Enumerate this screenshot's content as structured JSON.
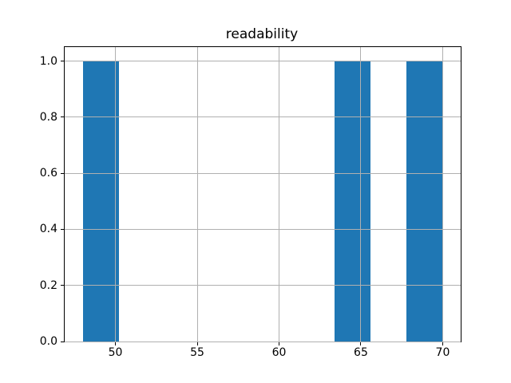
{
  "figure": {
    "background_color": "#ffffff"
  },
  "chart_data": {
    "type": "bar",
    "subtype": "histogram",
    "title": "readability",
    "xlabel": "",
    "ylabel": "",
    "bin_edges": [
      48.0,
      50.2,
      52.4,
      54.6,
      56.8,
      59.0,
      61.2,
      63.4,
      65.6,
      67.8,
      70.0
    ],
    "counts": [
      1,
      0,
      0,
      0,
      0,
      0,
      0,
      1,
      0,
      1
    ],
    "xlim": [
      46.9,
      71.1
    ],
    "ylim": [
      0,
      1.05
    ],
    "x_ticks": [
      50,
      55,
      60,
      65,
      70
    ],
    "x_tick_labels": [
      "50",
      "55",
      "60",
      "65",
      "70"
    ],
    "y_ticks": [
      0.0,
      0.2,
      0.4,
      0.6,
      0.8,
      1.0
    ],
    "y_tick_labels": [
      "0.0",
      "0.2",
      "0.4",
      "0.6",
      "0.8",
      "1.0"
    ],
    "grid": true,
    "grid_over_bars": true,
    "legend": false,
    "bar_color": "#1f77b4",
    "grid_color": "#b0b0b0",
    "spine_color": "#000000",
    "text_color": "#000000"
  }
}
